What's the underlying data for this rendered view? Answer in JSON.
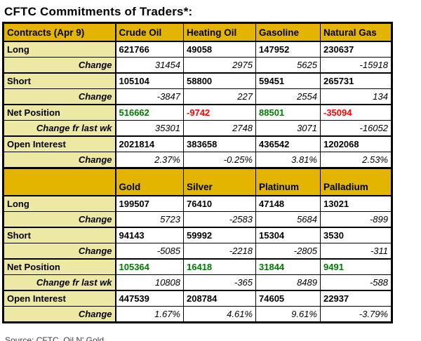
{
  "title": "CFTC Commitments of Traders*:",
  "footer": {
    "source": "Source: CFTC, Oil N' Gold"
  },
  "colors": {
    "header_gold": "#e3b300",
    "label_yellow": "#ece79d",
    "net_positive": "#007a00",
    "net_negative": "#ff0000",
    "border": "#000000",
    "background": "#ffffff"
  },
  "chart_data": {
    "type": "table",
    "title": "CFTC Commitments of Traders*:",
    "sections": [
      {
        "name": "energy",
        "header": [
          "Contracts (Apr 9)",
          "Crude Oil",
          "Heating Oil",
          "Gasoline",
          "Natural Gas"
        ],
        "rows": [
          {
            "label": "Long",
            "kind": "value",
            "values": [
              "621766",
              "49058",
              "147952",
              "230637"
            ]
          },
          {
            "label": "Change",
            "kind": "change",
            "values": [
              "31454",
              "2975",
              "5625",
              "-15918"
            ]
          },
          {
            "label": "Short",
            "kind": "value",
            "values": [
              "105104",
              "58800",
              "59451",
              "265731"
            ]
          },
          {
            "label": "Change",
            "kind": "change",
            "values": [
              "-3847",
              "227",
              "2554",
              "134"
            ]
          },
          {
            "label": "Net Position",
            "kind": "net",
            "values": [
              "516662",
              "-9742",
              "88501",
              "-35094"
            ]
          },
          {
            "label": "Change fr last wk",
            "kind": "change-wk",
            "values": [
              "35301",
              "2748",
              "3071",
              "-16052"
            ]
          },
          {
            "label": "Open Interest",
            "kind": "value",
            "values": [
              "2021814",
              "383658",
              "436542",
              "1202068"
            ]
          },
          {
            "label": "Change",
            "kind": "change",
            "values": [
              "2.37%",
              "-0.25%",
              "3.81%",
              "2.53%"
            ]
          }
        ]
      },
      {
        "name": "metals",
        "header": [
          "",
          "Gold",
          "Silver",
          "Platinum",
          "Palladium"
        ],
        "rows": [
          {
            "label": "Long",
            "kind": "value",
            "values": [
              "199507",
              "76410",
              "47148",
              "13021"
            ]
          },
          {
            "label": "Change",
            "kind": "change",
            "values": [
              "5723",
              "-2583",
              "5684",
              "-899"
            ]
          },
          {
            "label": "Short",
            "kind": "value",
            "values": [
              "94143",
              "59992",
              "15304",
              "3530"
            ]
          },
          {
            "label": "Change",
            "kind": "change",
            "values": [
              "-5085",
              "-2218",
              "-2805",
              "-311"
            ]
          },
          {
            "label": "Net Position",
            "kind": "net",
            "values": [
              "105364",
              "16418",
              "31844",
              "9491"
            ]
          },
          {
            "label": "Change fr last wk",
            "kind": "change-wk",
            "values": [
              "10808",
              "-365",
              "8489",
              "-588"
            ]
          },
          {
            "label": "Open Interest",
            "kind": "value",
            "values": [
              "447539",
              "208784",
              "74605",
              "22937"
            ]
          },
          {
            "label": "Change",
            "kind": "change",
            "values": [
              "1.67%",
              "4.61%",
              "9.61%",
              "-3.79%"
            ]
          }
        ]
      }
    ]
  }
}
